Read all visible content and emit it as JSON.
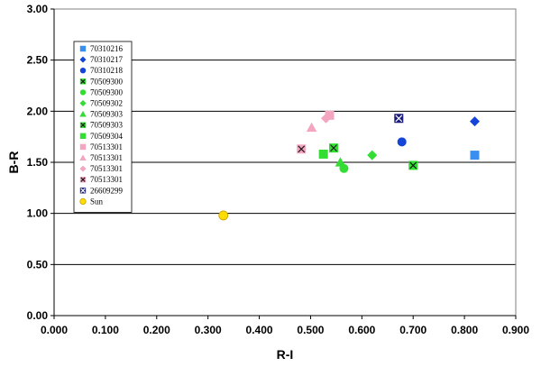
{
  "chart_data": {
    "type": "scatter",
    "title": "",
    "xlabel": "R-I",
    "ylabel": "B-R",
    "xlim": [
      0,
      0.9
    ],
    "ylim": [
      0,
      3
    ],
    "xticks": [
      "0.000",
      "0.100",
      "0.200",
      "0.300",
      "0.400",
      "0.500",
      "0.600",
      "0.700",
      "0.800",
      "0.900"
    ],
    "yticks": [
      "0.00",
      "0.50",
      "1.00",
      "1.50",
      "2.00",
      "2.50",
      "3.00"
    ],
    "grid": "horizontal",
    "legend_position": "top-left",
    "series": [
      {
        "name": "70310216",
        "marker": "square",
        "color": "#3a8ef0",
        "points": [
          {
            "x": 0.82,
            "y": 1.57
          }
        ]
      },
      {
        "name": "70310217",
        "marker": "diamond",
        "color": "#1444d8",
        "points": [
          {
            "x": 0.82,
            "y": 1.9
          }
        ]
      },
      {
        "name": "70310218",
        "marker": "circle",
        "color": "#1444d8",
        "points": [
          {
            "x": 0.678,
            "y": 1.7
          }
        ]
      },
      {
        "name": "70509300",
        "marker": "square-x",
        "color": "#33dd33",
        "points": [
          {
            "x": 0.7,
            "y": 1.47
          }
        ]
      },
      {
        "name": "70509300",
        "marker": "circle",
        "color": "#33dd33",
        "points": [
          {
            "x": 0.565,
            "y": 1.44
          }
        ]
      },
      {
        "name": "70509302",
        "marker": "diamond",
        "color": "#33dd33",
        "points": [
          {
            "x": 0.62,
            "y": 1.57
          }
        ]
      },
      {
        "name": "70509303",
        "marker": "triangle",
        "color": "#33dd33",
        "points": [
          {
            "x": 0.558,
            "y": 1.5
          }
        ]
      },
      {
        "name": "70509303",
        "marker": "square-x",
        "color": "#33dd33",
        "points": [
          {
            "x": 0.545,
            "y": 1.64
          }
        ]
      },
      {
        "name": "70509304",
        "marker": "square",
        "color": "#33dd33",
        "points": [
          {
            "x": 0.525,
            "y": 1.58
          }
        ]
      },
      {
        "name": "70513301",
        "marker": "square",
        "color": "#f4a6c0",
        "points": [
          {
            "x": 0.537,
            "y": 1.96
          }
        ]
      },
      {
        "name": "70513301",
        "marker": "triangle",
        "color": "#f4a6c0",
        "points": [
          {
            "x": 0.502,
            "y": 1.84
          }
        ]
      },
      {
        "name": "70513301",
        "marker": "diamond",
        "color": "#f4a6c0",
        "points": [
          {
            "x": 0.53,
            "y": 1.93
          }
        ]
      },
      {
        "name": "70513301",
        "marker": "square-x",
        "color": "#f4a6c0",
        "points": [
          {
            "x": 0.482,
            "y": 1.63
          }
        ]
      },
      {
        "name": "26609299",
        "marker": "square-x",
        "color": "#1c1c7a",
        "points": [
          {
            "x": 0.672,
            "y": 1.93
          }
        ]
      },
      {
        "name": "Sun",
        "marker": "circle",
        "color": "#ffdd00",
        "points": [
          {
            "x": 0.33,
            "y": 0.98
          }
        ]
      }
    ]
  }
}
